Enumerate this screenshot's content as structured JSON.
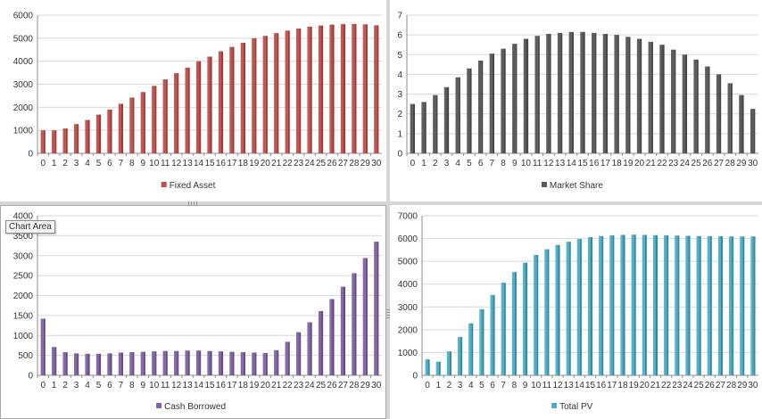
{
  "chart_data": [
    {
      "type": "bar",
      "categories": [
        "0",
        "1",
        "2",
        "3",
        "4",
        "5",
        "6",
        "7",
        "8",
        "9",
        "10",
        "11",
        "12",
        "13",
        "14",
        "15",
        "16",
        "17",
        "18",
        "19",
        "20",
        "21",
        "22",
        "23",
        "24",
        "25",
        "26",
        "27",
        "28",
        "29",
        "30"
      ],
      "series": [
        {
          "name": "Fixed Asset",
          "values": [
            1000,
            1000,
            1080,
            1270,
            1450,
            1680,
            1900,
            2150,
            2420,
            2660,
            2930,
            3210,
            3480,
            3720,
            4000,
            4200,
            4430,
            4620,
            4800,
            5000,
            5100,
            5220,
            5330,
            5420,
            5500,
            5550,
            5590,
            5610,
            5620,
            5600,
            5560
          ]
        }
      ],
      "ylim": [
        0,
        6000
      ],
      "yticks": [
        0,
        1000,
        2000,
        3000,
        4000,
        5000,
        6000
      ],
      "color": "#c0504d",
      "legend": "bottom"
    },
    {
      "type": "bar",
      "categories": [
        "0",
        "1",
        "2",
        "3",
        "4",
        "5",
        "6",
        "7",
        "8",
        "9",
        "10",
        "11",
        "12",
        "13",
        "14",
        "15",
        "16",
        "17",
        "18",
        "19",
        "20",
        "21",
        "22",
        "23",
        "24",
        "25",
        "26",
        "27",
        "28",
        "29",
        "30"
      ],
      "series": [
        {
          "name": "Market Share",
          "values": [
            2.5,
            2.6,
            2.95,
            3.35,
            3.85,
            4.3,
            4.7,
            5.05,
            5.3,
            5.55,
            5.8,
            5.95,
            6.05,
            6.1,
            6.15,
            6.15,
            6.1,
            6.05,
            6.0,
            5.9,
            5.8,
            5.65,
            5.5,
            5.25,
            5.0,
            4.75,
            4.4,
            4.0,
            3.55,
            2.95,
            2.25
          ]
        }
      ],
      "ylim": [
        0,
        7
      ],
      "yticks": [
        0,
        1,
        2,
        3,
        4,
        5,
        6,
        7
      ],
      "color": "#5a5a5a",
      "legend": "bottom"
    },
    {
      "type": "bar",
      "categories": [
        "0",
        "1",
        "2",
        "3",
        "4",
        "5",
        "6",
        "7",
        "8",
        "9",
        "10",
        "11",
        "12",
        "13",
        "14",
        "15",
        "16",
        "17",
        "18",
        "19",
        "20",
        "21",
        "22",
        "23",
        "24",
        "25",
        "26",
        "27",
        "28",
        "29",
        "30"
      ],
      "series": [
        {
          "name": "Cash Borrowed",
          "values": [
            1420,
            710,
            580,
            550,
            540,
            540,
            550,
            570,
            580,
            590,
            600,
            610,
            610,
            620,
            620,
            610,
            600,
            590,
            580,
            570,
            560,
            630,
            840,
            1080,
            1330,
            1610,
            1910,
            2220,
            2560,
            2940,
            3350
          ]
        }
      ],
      "ylim": [
        0,
        4000
      ],
      "yticks": [
        0,
        500,
        1000,
        1500,
        2000,
        2500,
        3000,
        3500,
        4000
      ],
      "color": "#8064a2",
      "legend": "bottom"
    },
    {
      "type": "bar",
      "categories": [
        "0",
        "1",
        "2",
        "3",
        "4",
        "5",
        "6",
        "7",
        "8",
        "9",
        "10",
        "11",
        "12",
        "13",
        "14",
        "15",
        "16",
        "17",
        "18",
        "19",
        "20",
        "21",
        "22",
        "23",
        "24",
        "25",
        "26",
        "27",
        "28",
        "29",
        "30"
      ],
      "series": [
        {
          "name": "Total PV",
          "values": [
            700,
            600,
            1050,
            1680,
            2280,
            2900,
            3520,
            4060,
            4530,
            4940,
            5280,
            5530,
            5720,
            5860,
            5980,
            6060,
            6110,
            6140,
            6160,
            6170,
            6160,
            6150,
            6140,
            6130,
            6120,
            6110,
            6100,
            6100,
            6090,
            6090,
            6090
          ]
        }
      ],
      "ylim": [
        0,
        7000
      ],
      "yticks": [
        0,
        1000,
        2000,
        3000,
        4000,
        5000,
        6000,
        7000
      ],
      "color": "#4bacc6",
      "legend": "bottom"
    }
  ],
  "ui": {
    "tooltip": "Chart Area"
  }
}
